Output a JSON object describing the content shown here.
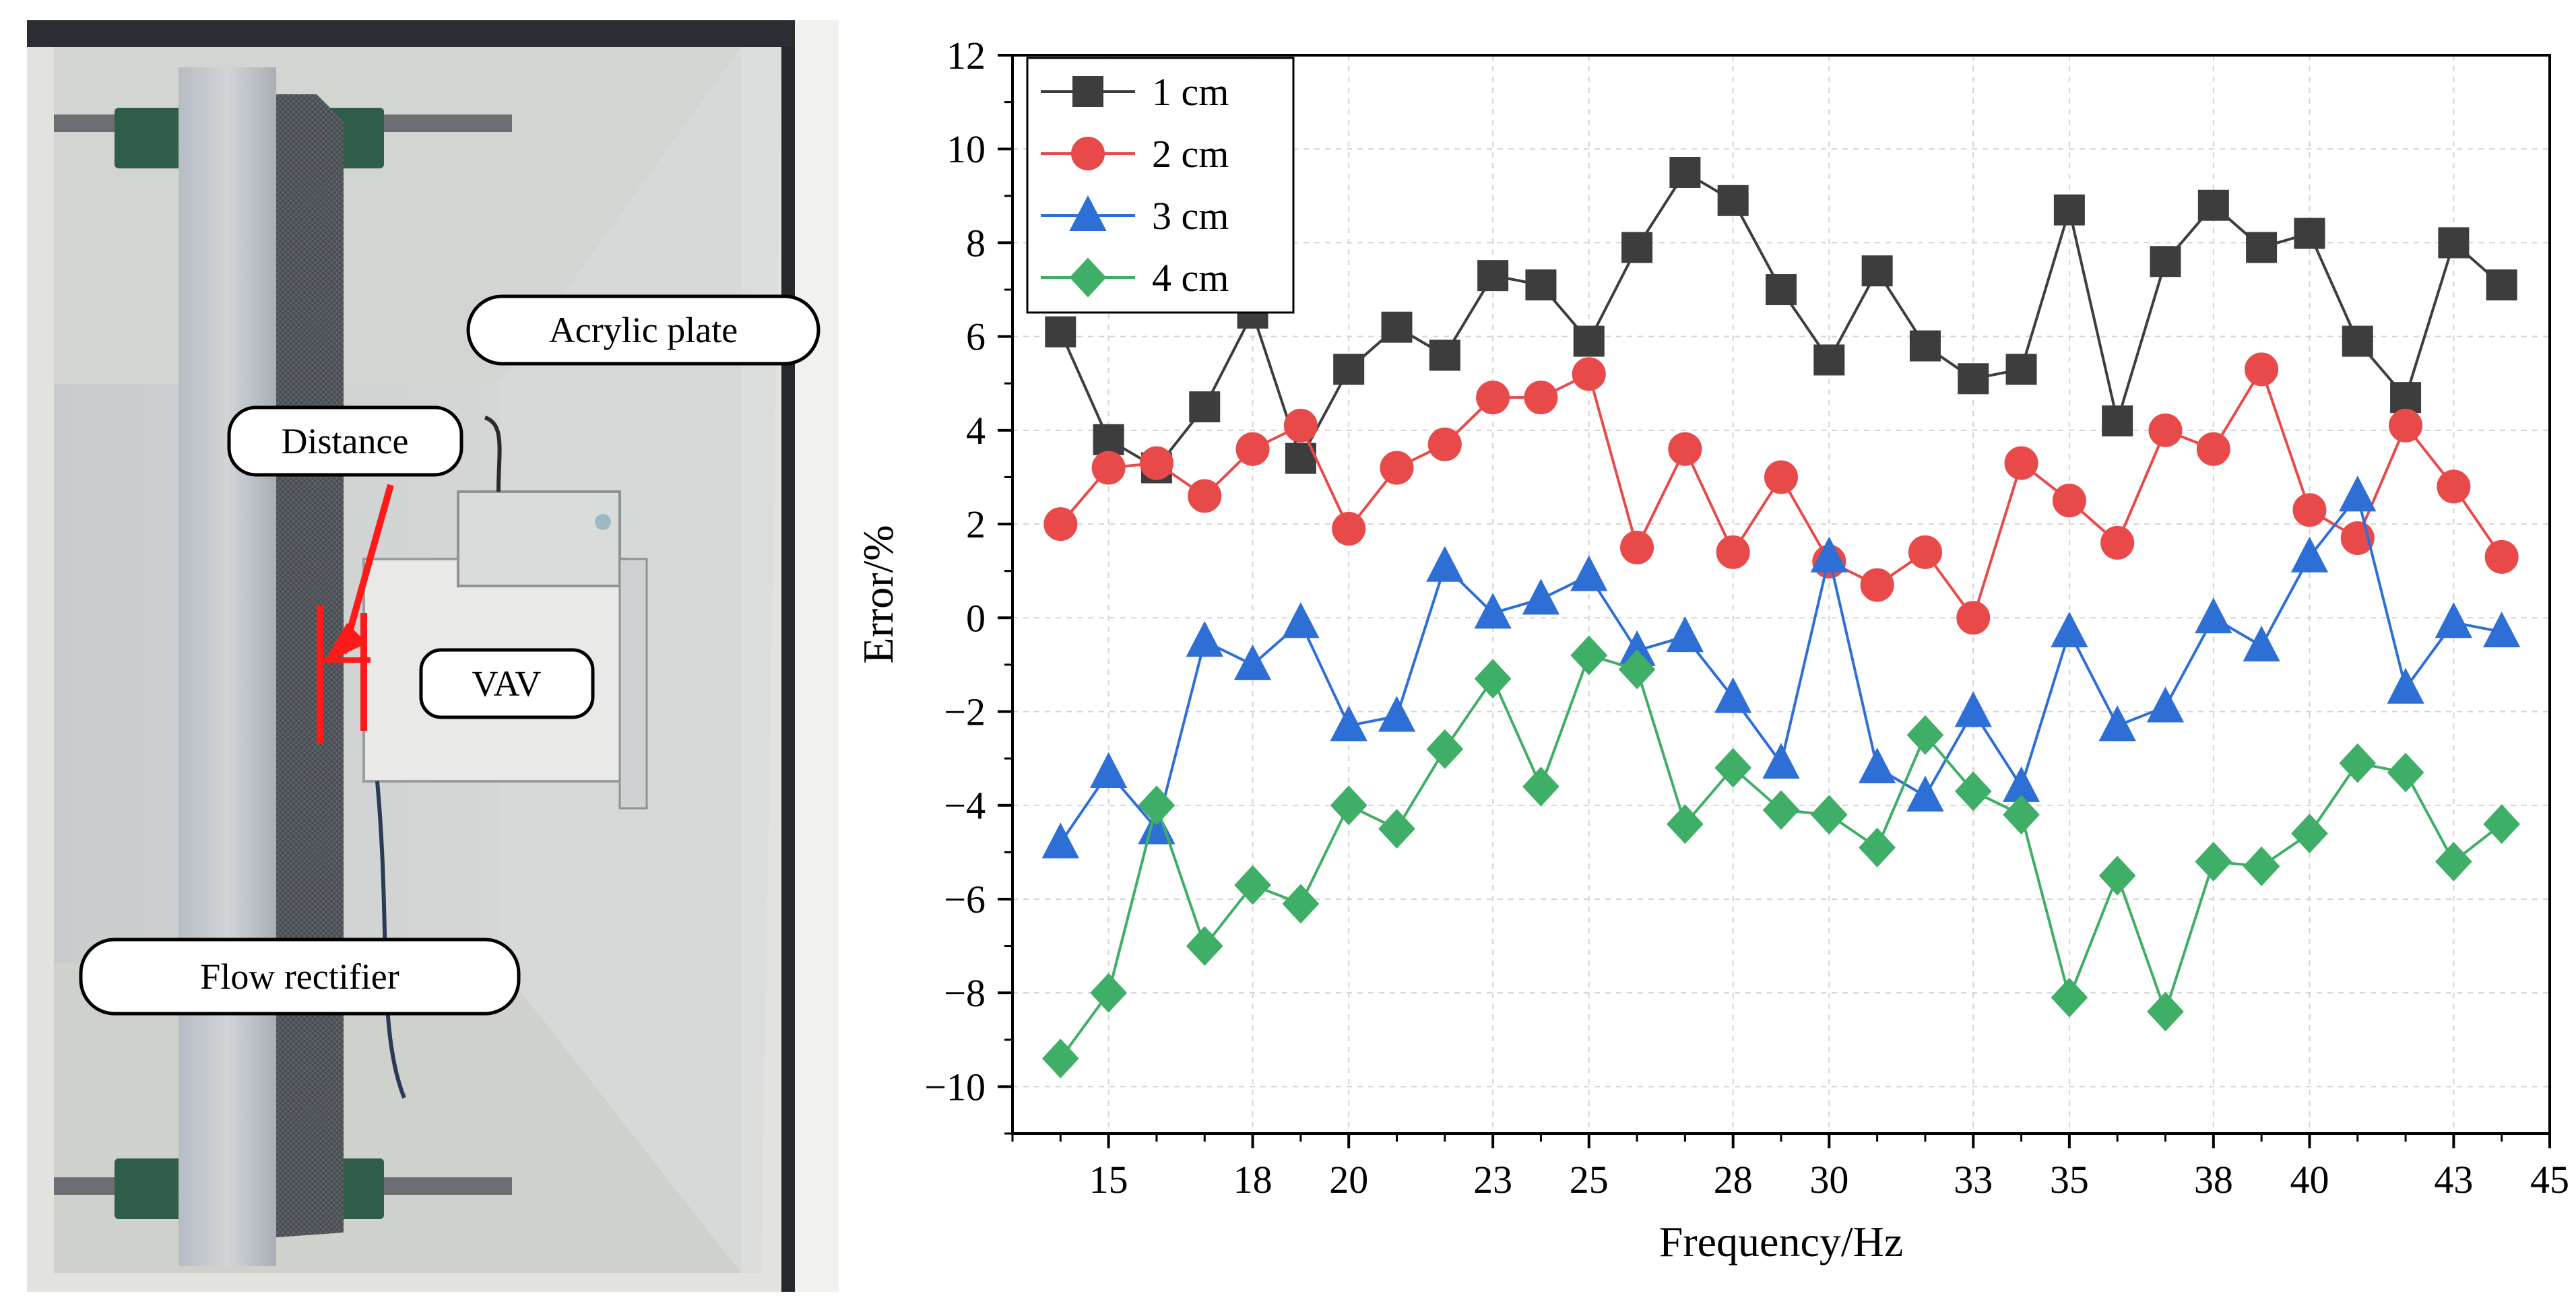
{
  "photo": {
    "labels": {
      "acrylic_plate": "Acrylic plate",
      "distance": "Distance",
      "vav": "VAV",
      "flow_rectifier": "Flow rectifier"
    }
  },
  "chart_data": {
    "type": "line",
    "title": "",
    "xlabel": "Frequency/Hz",
    "ylabel": "Error/%",
    "xlim": [
      13,
      45
    ],
    "ylim": [
      -11,
      12
    ],
    "xticks": [
      15,
      18,
      20,
      23,
      25,
      28,
      30,
      33,
      35,
      38,
      40,
      43,
      45
    ],
    "xtick_labels": [
      "15",
      "18",
      "20",
      "23",
      "25",
      "28",
      "30",
      "33",
      "35",
      "38",
      "40",
      "43",
      "45"
    ],
    "yticks": [
      -10,
      -8,
      -6,
      -4,
      -2,
      0,
      2,
      4,
      6,
      8,
      10,
      12
    ],
    "ytick_labels": [
      "−10",
      "−8",
      "−6",
      "−4",
      "−2",
      "0",
      "2",
      "4",
      "6",
      "8",
      "10",
      "12"
    ],
    "grid": true,
    "legend_position": "top-left",
    "x": [
      14,
      15,
      16,
      17,
      18,
      19,
      20,
      21,
      22,
      23,
      24,
      25,
      26,
      27,
      28,
      29,
      30,
      31,
      32,
      33,
      34,
      35,
      36,
      37,
      38,
      39,
      40,
      41,
      42,
      43,
      44
    ],
    "series": [
      {
        "name": "1 cm",
        "color": "#3d3d3d",
        "marker": "square",
        "values": [
          6.1,
          3.8,
          3.2,
          4.5,
          6.5,
          3.4,
          5.3,
          6.2,
          5.6,
          7.3,
          7.1,
          5.9,
          7.9,
          9.5,
          8.9,
          7.0,
          5.5,
          7.4,
          5.8,
          5.1,
          5.3,
          8.7,
          4.2,
          7.6,
          8.8,
          7.9,
          8.2,
          5.9,
          4.7,
          8.0,
          7.1
        ]
      },
      {
        "name": "2 cm",
        "color": "#e84a4a",
        "marker": "circle",
        "values": [
          2.0,
          3.2,
          3.3,
          2.6,
          3.6,
          4.1,
          1.9,
          3.2,
          3.7,
          4.7,
          4.7,
          5.2,
          1.5,
          3.6,
          1.4,
          3.0,
          1.2,
          0.7,
          1.4,
          0.0,
          3.3,
          2.5,
          1.6,
          4.0,
          3.6,
          5.3,
          2.3,
          1.7,
          4.1,
          2.8,
          1.3
        ]
      },
      {
        "name": "3 cm",
        "color": "#2e6fd6",
        "marker": "triangle",
        "values": [
          -4.8,
          -3.3,
          -4.5,
          -0.5,
          -1.0,
          -0.1,
          -2.3,
          -2.1,
          1.1,
          0.1,
          0.4,
          0.9,
          -0.7,
          -0.4,
          -1.7,
          -3.1,
          1.3,
          -3.2,
          -3.8,
          -2.0,
          -3.6,
          -0.3,
          -2.3,
          -1.9,
          0.0,
          -0.6,
          1.3,
          2.6,
          -1.5,
          -0.1,
          -0.3
        ]
      },
      {
        "name": "4 cm",
        "color": "#3fae66",
        "marker": "diamond",
        "values": [
          -9.4,
          -8.0,
          -4.0,
          -7.0,
          -5.7,
          -6.1,
          -4.0,
          -4.5,
          -2.8,
          -1.3,
          -3.6,
          -0.8,
          -1.1,
          -4.4,
          -3.2,
          -4.1,
          -4.2,
          -4.9,
          -2.5,
          -3.7,
          -4.2,
          -8.1,
          -5.5,
          -8.4,
          -5.2,
          -5.3,
          -4.6,
          -3.1,
          -3.3,
          -5.2,
          -4.4
        ]
      }
    ]
  }
}
